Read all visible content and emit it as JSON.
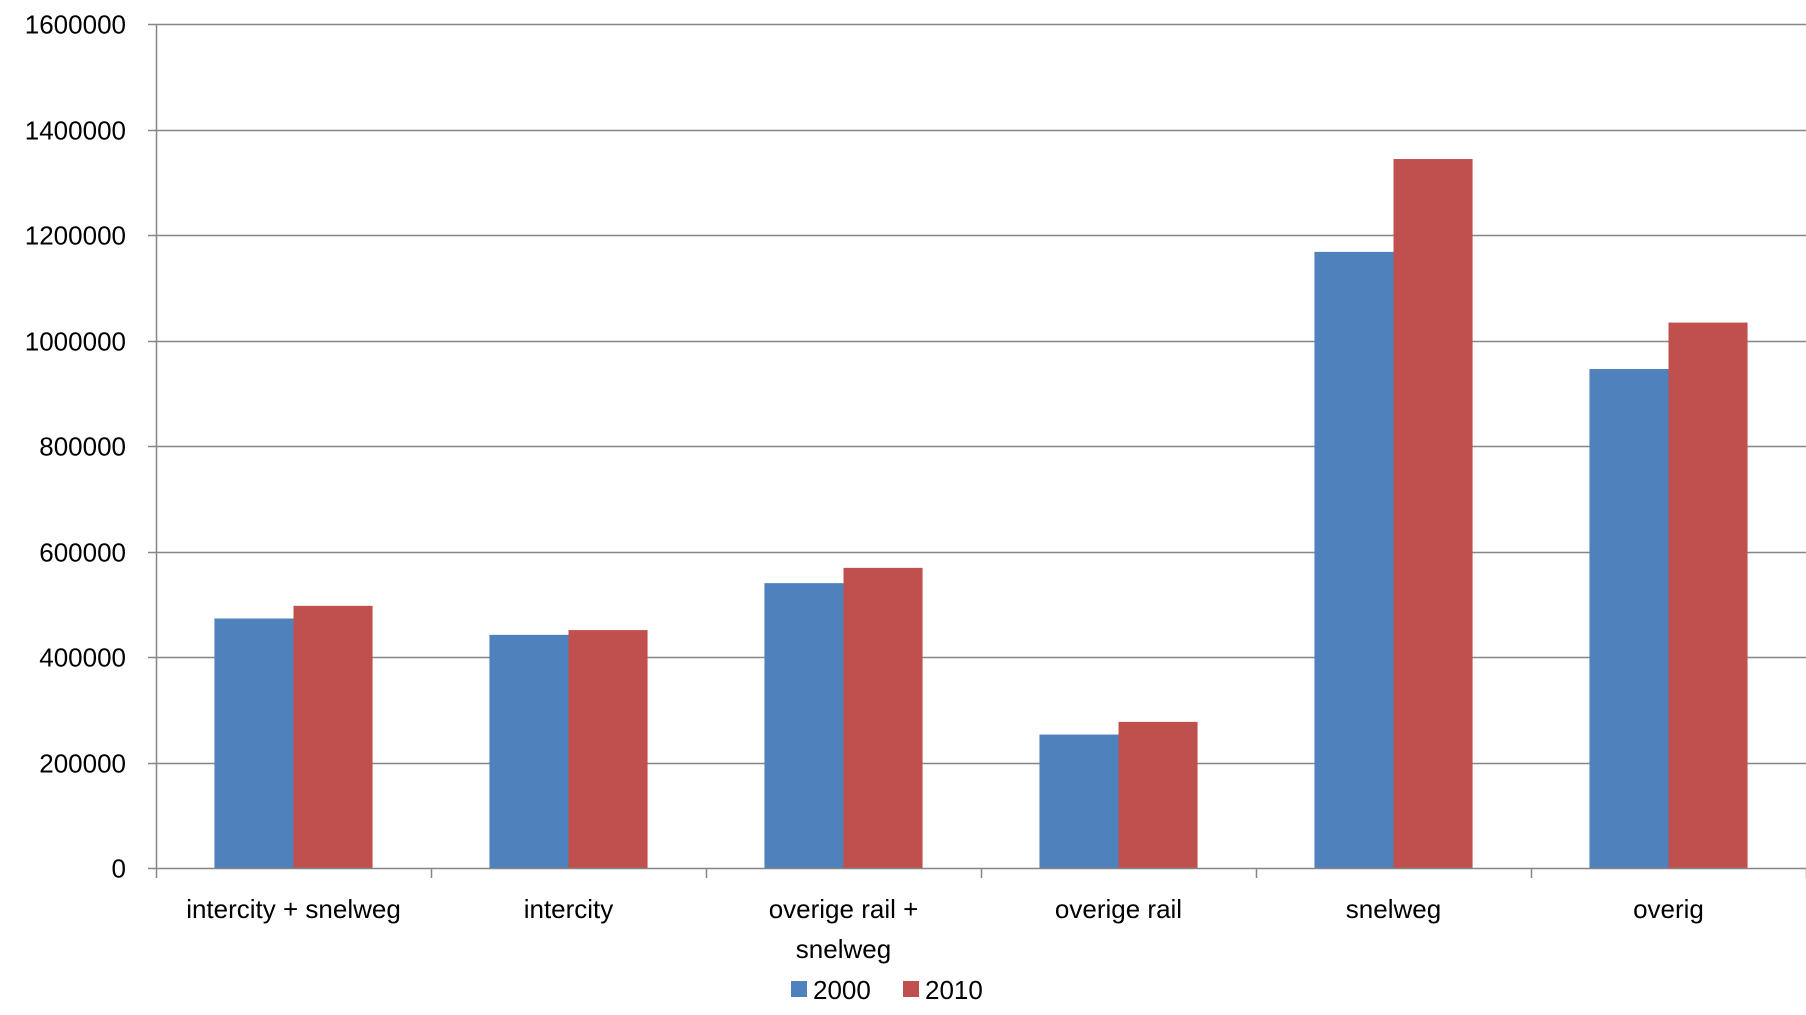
{
  "chart_data": {
    "type": "bar",
    "title": "",
    "xlabel": "",
    "ylabel": "",
    "ylim": [
      0,
      1600000
    ],
    "yticks": [
      0,
      200000,
      400000,
      600000,
      800000,
      1000000,
      1200000,
      1400000,
      1600000
    ],
    "ytick_labels": [
      "0",
      "200000",
      "400000",
      "600000",
      "800000",
      "1000000",
      "1200000",
      "1400000",
      "1600000"
    ],
    "grid": true,
    "legend_position": "bottom",
    "categories": [
      [
        "intercity + snelweg"
      ],
      [
        "intercity"
      ],
      [
        "overige rail +",
        "snelweg"
      ],
      [
        "overige rail"
      ],
      [
        "snelweg"
      ],
      [
        "overig"
      ]
    ],
    "series": [
      {
        "name": "2000",
        "color": "#4f81bd",
        "values": [
          473000,
          442000,
          540000,
          253000,
          1168000,
          946000
        ]
      },
      {
        "name": "2010",
        "color": "#c0504d",
        "values": [
          497000,
          451000,
          569000,
          277000,
          1344000,
          1034000
        ]
      }
    ]
  }
}
